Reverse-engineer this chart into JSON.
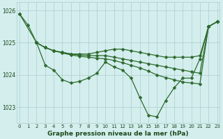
{
  "series": [
    {
      "x": [
        0,
        1,
        2,
        3,
        4,
        5,
        6,
        7,
        8,
        9,
        10,
        11,
        12,
        13,
        14,
        15,
        16,
        17,
        18,
        19,
        20,
        21,
        22,
        23
      ],
      "y": [
        1025.9,
        1025.55,
        1025.0,
        1024.3,
        1024.15,
        1023.85,
        1023.75,
        1023.8,
        1023.9,
        1024.05,
        1024.4,
        1024.25,
        1024.15,
        1023.9,
        1023.3,
        1022.75,
        1022.7,
        1023.2,
        1023.6,
        1023.9,
        1023.9,
        1024.5,
        1025.5,
        1025.65
      ]
    },
    {
      "x": [
        0,
        2,
        3,
        4,
        5,
        6,
        7,
        8,
        9,
        10,
        11,
        12,
        13,
        14,
        15,
        16,
        17,
        18,
        19,
        20,
        21,
        22,
        23
      ],
      "y": [
        1025.9,
        1025.0,
        1024.85,
        1024.75,
        1024.7,
        1024.65,
        1024.65,
        1024.65,
        1024.7,
        1024.75,
        1024.8,
        1024.8,
        1024.75,
        1024.7,
        1024.65,
        1024.6,
        1024.55,
        1024.55,
        1024.55,
        1024.55,
        1024.6,
        1025.5,
        1025.65
      ]
    },
    {
      "x": [
        2,
        3,
        4,
        5,
        6,
        7,
        8,
        9,
        10,
        11,
        12,
        13,
        14,
        15,
        16,
        17,
        18,
        19,
        20,
        21,
        22,
        23
      ],
      "y": [
        1025.0,
        1024.85,
        1024.75,
        1024.7,
        1024.65,
        1024.62,
        1024.6,
        1024.6,
        1024.6,
        1024.55,
        1024.5,
        1024.45,
        1024.4,
        1024.35,
        1024.3,
        1024.25,
        1024.2,
        1024.15,
        1024.1,
        1024.05,
        1025.5,
        1025.65
      ]
    },
    {
      "x": [
        2,
        3,
        4,
        5,
        6,
        7,
        8,
        9,
        10,
        11,
        12,
        13,
        14,
        15,
        16,
        17,
        18,
        19,
        20,
        21,
        22,
        23
      ],
      "y": [
        1025.0,
        1024.85,
        1024.75,
        1024.68,
        1024.62,
        1024.58,
        1024.55,
        1024.52,
        1024.5,
        1024.45,
        1024.38,
        1024.3,
        1024.22,
        1024.12,
        1024.0,
        1023.92,
        1023.85,
        1023.78,
        1023.75,
        1023.72,
        1025.5,
        1025.65
      ]
    }
  ],
  "line_color": "#2d6a2d",
  "marker": "D",
  "marker_size": 2.5,
  "linewidth": 0.9,
  "bg_color": "#d4eeee",
  "grid_color": "#aacccc",
  "xlim": [
    -0.3,
    23.3
  ],
  "ylim": [
    1022.5,
    1026.25
  ],
  "yticks": [
    1023,
    1024,
    1025,
    1026
  ],
  "xticks": [
    0,
    1,
    2,
    3,
    4,
    5,
    6,
    7,
    8,
    9,
    10,
    11,
    12,
    13,
    14,
    15,
    16,
    17,
    18,
    19,
    20,
    21,
    22,
    23
  ],
  "xlabel": "Graphe pression niveau de la mer (hPa)",
  "xlabel_fontsize": 6.5,
  "tick_fontsize": 5.0,
  "label_color": "#1a4a1a"
}
